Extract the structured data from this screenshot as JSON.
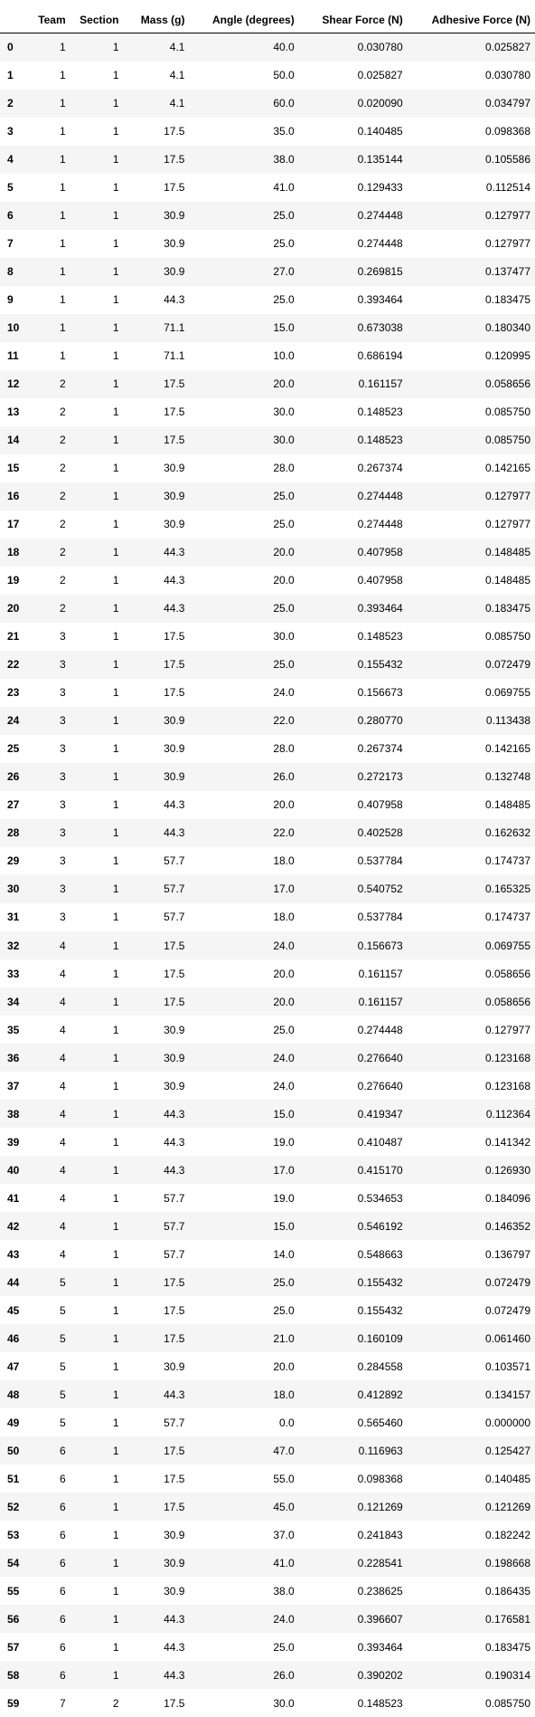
{
  "table": {
    "columns": [
      "",
      "Team",
      "Section",
      "Mass (g)",
      "Angle (degrees)",
      "Shear Force (N)",
      "Adhesive Force (N)"
    ],
    "rows": [
      [
        "0",
        "1",
        "1",
        "4.1",
        "40.0",
        "0.030780",
        "0.025827"
      ],
      [
        "1",
        "1",
        "1",
        "4.1",
        "50.0",
        "0.025827",
        "0.030780"
      ],
      [
        "2",
        "1",
        "1",
        "4.1",
        "60.0",
        "0.020090",
        "0.034797"
      ],
      [
        "3",
        "1",
        "1",
        "17.5",
        "35.0",
        "0.140485",
        "0.098368"
      ],
      [
        "4",
        "1",
        "1",
        "17.5",
        "38.0",
        "0.135144",
        "0.105586"
      ],
      [
        "5",
        "1",
        "1",
        "17.5",
        "41.0",
        "0.129433",
        "0.112514"
      ],
      [
        "6",
        "1",
        "1",
        "30.9",
        "25.0",
        "0.274448",
        "0.127977"
      ],
      [
        "7",
        "1",
        "1",
        "30.9",
        "25.0",
        "0.274448",
        "0.127977"
      ],
      [
        "8",
        "1",
        "1",
        "30.9",
        "27.0",
        "0.269815",
        "0.137477"
      ],
      [
        "9",
        "1",
        "1",
        "44.3",
        "25.0",
        "0.393464",
        "0.183475"
      ],
      [
        "10",
        "1",
        "1",
        "71.1",
        "15.0",
        "0.673038",
        "0.180340"
      ],
      [
        "11",
        "1",
        "1",
        "71.1",
        "10.0",
        "0.686194",
        "0.120995"
      ],
      [
        "12",
        "2",
        "1",
        "17.5",
        "20.0",
        "0.161157",
        "0.058656"
      ],
      [
        "13",
        "2",
        "1",
        "17.5",
        "30.0",
        "0.148523",
        "0.085750"
      ],
      [
        "14",
        "2",
        "1",
        "17.5",
        "30.0",
        "0.148523",
        "0.085750"
      ],
      [
        "15",
        "2",
        "1",
        "30.9",
        "28.0",
        "0.267374",
        "0.142165"
      ],
      [
        "16",
        "2",
        "1",
        "30.9",
        "25.0",
        "0.274448",
        "0.127977"
      ],
      [
        "17",
        "2",
        "1",
        "30.9",
        "25.0",
        "0.274448",
        "0.127977"
      ],
      [
        "18",
        "2",
        "1",
        "44.3",
        "20.0",
        "0.407958",
        "0.148485"
      ],
      [
        "19",
        "2",
        "1",
        "44.3",
        "20.0",
        "0.407958",
        "0.148485"
      ],
      [
        "20",
        "2",
        "1",
        "44.3",
        "25.0",
        "0.393464",
        "0.183475"
      ],
      [
        "21",
        "3",
        "1",
        "17.5",
        "30.0",
        "0.148523",
        "0.085750"
      ],
      [
        "22",
        "3",
        "1",
        "17.5",
        "25.0",
        "0.155432",
        "0.072479"
      ],
      [
        "23",
        "3",
        "1",
        "17.5",
        "24.0",
        "0.156673",
        "0.069755"
      ],
      [
        "24",
        "3",
        "1",
        "30.9",
        "22.0",
        "0.280770",
        "0.113438"
      ],
      [
        "25",
        "3",
        "1",
        "30.9",
        "28.0",
        "0.267374",
        "0.142165"
      ],
      [
        "26",
        "3",
        "1",
        "30.9",
        "26.0",
        "0.272173",
        "0.132748"
      ],
      [
        "27",
        "3",
        "1",
        "44.3",
        "20.0",
        "0.407958",
        "0.148485"
      ],
      [
        "28",
        "3",
        "1",
        "44.3",
        "22.0",
        "0.402528",
        "0.162632"
      ],
      [
        "29",
        "3",
        "1",
        "57.7",
        "18.0",
        "0.537784",
        "0.174737"
      ],
      [
        "30",
        "3",
        "1",
        "57.7",
        "17.0",
        "0.540752",
        "0.165325"
      ],
      [
        "31",
        "3",
        "1",
        "57.7",
        "18.0",
        "0.537784",
        "0.174737"
      ],
      [
        "32",
        "4",
        "1",
        "17.5",
        "24.0",
        "0.156673",
        "0.069755"
      ],
      [
        "33",
        "4",
        "1",
        "17.5",
        "20.0",
        "0.161157",
        "0.058656"
      ],
      [
        "34",
        "4",
        "1",
        "17.5",
        "20.0",
        "0.161157",
        "0.058656"
      ],
      [
        "35",
        "4",
        "1",
        "30.9",
        "25.0",
        "0.274448",
        "0.127977"
      ],
      [
        "36",
        "4",
        "1",
        "30.9",
        "24.0",
        "0.276640",
        "0.123168"
      ],
      [
        "37",
        "4",
        "1",
        "30.9",
        "24.0",
        "0.276640",
        "0.123168"
      ],
      [
        "38",
        "4",
        "1",
        "44.3",
        "15.0",
        "0.419347",
        "0.112364"
      ],
      [
        "39",
        "4",
        "1",
        "44.3",
        "19.0",
        "0.410487",
        "0.141342"
      ],
      [
        "40",
        "4",
        "1",
        "44.3",
        "17.0",
        "0.415170",
        "0.126930"
      ],
      [
        "41",
        "4",
        "1",
        "57.7",
        "19.0",
        "0.534653",
        "0.184096"
      ],
      [
        "42",
        "4",
        "1",
        "57.7",
        "15.0",
        "0.546192",
        "0.146352"
      ],
      [
        "43",
        "4",
        "1",
        "57.7",
        "14.0",
        "0.548663",
        "0.136797"
      ],
      [
        "44",
        "5",
        "1",
        "17.5",
        "25.0",
        "0.155432",
        "0.072479"
      ],
      [
        "45",
        "5",
        "1",
        "17.5",
        "25.0",
        "0.155432",
        "0.072479"
      ],
      [
        "46",
        "5",
        "1",
        "17.5",
        "21.0",
        "0.160109",
        "0.061460"
      ],
      [
        "47",
        "5",
        "1",
        "30.9",
        "20.0",
        "0.284558",
        "0.103571"
      ],
      [
        "48",
        "5",
        "1",
        "44.3",
        "18.0",
        "0.412892",
        "0.134157"
      ],
      [
        "49",
        "5",
        "1",
        "57.7",
        "0.0",
        "0.565460",
        "0.000000"
      ],
      [
        "50",
        "6",
        "1",
        "17.5",
        "47.0",
        "0.116963",
        "0.125427"
      ],
      [
        "51",
        "6",
        "1",
        "17.5",
        "55.0",
        "0.098368",
        "0.140485"
      ],
      [
        "52",
        "6",
        "1",
        "17.5",
        "45.0",
        "0.121269",
        "0.121269"
      ],
      [
        "53",
        "6",
        "1",
        "30.9",
        "37.0",
        "0.241843",
        "0.182242"
      ],
      [
        "54",
        "6",
        "1",
        "30.9",
        "41.0",
        "0.228541",
        "0.198668"
      ],
      [
        "55",
        "6",
        "1",
        "30.9",
        "38.0",
        "0.238625",
        "0.186435"
      ],
      [
        "56",
        "6",
        "1",
        "44.3",
        "24.0",
        "0.396607",
        "0.176581"
      ],
      [
        "57",
        "6",
        "1",
        "44.3",
        "25.0",
        "0.393464",
        "0.183475"
      ],
      [
        "58",
        "6",
        "1",
        "44.3",
        "26.0",
        "0.390202",
        "0.190314"
      ],
      [
        "59",
        "7",
        "2",
        "17.5",
        "30.0",
        "0.148523",
        "0.085750"
      ]
    ]
  }
}
